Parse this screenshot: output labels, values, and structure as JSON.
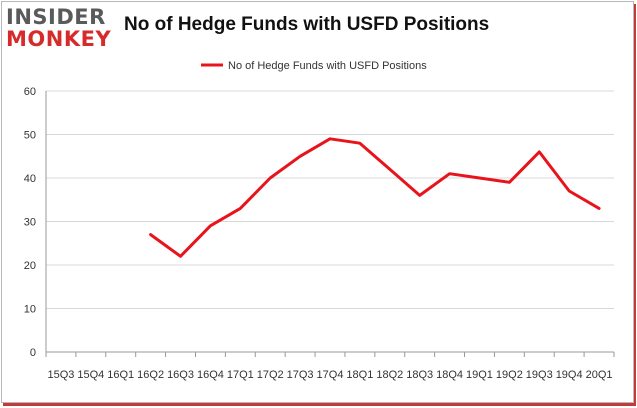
{
  "logo": {
    "top": "INSIDER",
    "bottom": "MONKEY"
  },
  "title": "No of Hedge Funds with USFD Positions",
  "colors": {
    "series": "#e8141b",
    "grid": "#d8d8d8",
    "axis": "#999999",
    "logo_red": "#d62b2b"
  },
  "chart_data": {
    "type": "line",
    "title": "No of Hedge Funds with USFD Positions",
    "xlabel": "",
    "ylabel": "",
    "ylim": [
      0,
      60
    ],
    "yticks": [
      "0",
      "10",
      "20",
      "30",
      "40",
      "50",
      "60"
    ],
    "grid": true,
    "legend_position": "top",
    "categories": [
      "15Q3",
      "15Q4",
      "16Q1",
      "16Q2",
      "16Q3",
      "16Q4",
      "17Q1",
      "17Q2",
      "17Q3",
      "17Q4",
      "18Q1",
      "18Q2",
      "18Q3",
      "18Q4",
      "19Q1",
      "19Q2",
      "19Q3",
      "19Q4",
      "20Q1"
    ],
    "series": [
      {
        "name": "No of Hedge Funds with USFD Positions",
        "values": [
          null,
          null,
          null,
          27,
          22,
          29,
          33,
          40,
          45,
          49,
          48,
          42,
          36,
          41,
          40,
          39,
          46,
          37,
          33
        ]
      }
    ]
  }
}
